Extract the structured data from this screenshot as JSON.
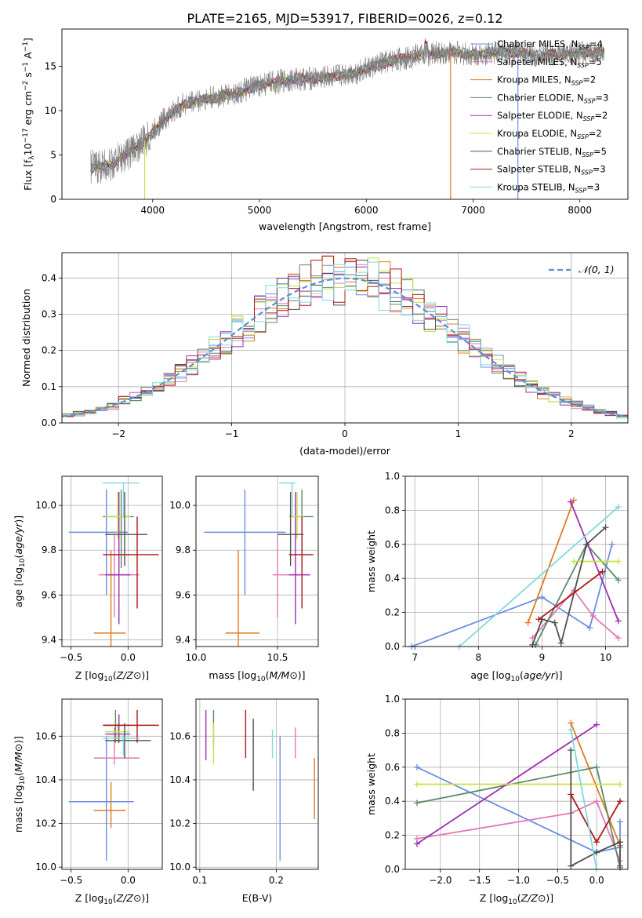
{
  "figure_title": "PLATE=2165, MJD=53917, FIBERID=0026, z=0.12",
  "colors": {
    "Chabrier MILES": "#6b8ee0",
    "Salpeter MILES": "#e07ab5",
    "Kroupa MILES": "#e07a20",
    "Chabrier ELODIE": "#5a8a68",
    "Salpeter ELODIE": "#9b30b0",
    "Kroupa ELODIE": "#c8e040",
    "Chabrier STELIB": "#505050",
    "Salpeter STELIB": "#b01818",
    "Kroupa STELIB": "#80d8e0",
    "gauss": "#5b8fd6"
  },
  "legend_spectrum": [
    {
      "name": "Chabrier MILES, N",
      "sub": "SSP",
      "tail": "=4"
    },
    {
      "name": "Salpeter MILES, N",
      "sub": "SSP",
      "tail": "=5"
    },
    {
      "name": "Kroupa MILES, N",
      "sub": "SSP",
      "tail": "=2"
    },
    {
      "name": "Chabrier ELODIE, N",
      "sub": "SSP",
      "tail": "=3"
    },
    {
      "name": "Salpeter ELODIE, N",
      "sub": "SSP",
      "tail": "=2"
    },
    {
      "name": "Kroupa ELODIE, N",
      "sub": "SSP",
      "tail": "=2"
    },
    {
      "name": "Chabrier STELIB, N",
      "sub": "SSP",
      "tail": "=5"
    },
    {
      "name": "Salpeter STELIB, N",
      "sub": "SSP",
      "tail": "=3"
    },
    {
      "name": "Kroupa STELIB, N",
      "sub": "SSP",
      "tail": "=3"
    }
  ],
  "chart_data": [
    {
      "id": "spectrum",
      "type": "line",
      "xlabel": "wavelength [Angstrom, rest frame]",
      "ylabel": "Flux [f",
      "ylabel_parts": [
        "Flux [f",
        "λ",
        "10",
        "−17",
        " erg cm",
        "−2",
        " s",
        "−1",
        " A",
        "−1",
        "]"
      ],
      "xlim": [
        3150,
        8450
      ],
      "ylim": [
        0,
        19.2
      ],
      "xticks": [
        4000,
        5000,
        6000,
        7000,
        8000
      ],
      "yticks": [
        0,
        5,
        10,
        15
      ],
      "continuum": [
        [
          3400,
          3.6
        ],
        [
          3600,
          3.8
        ],
        [
          3800,
          5.5
        ],
        [
          3950,
          6.8
        ],
        [
          4100,
          9
        ],
        [
          4300,
          10.8
        ],
        [
          4500,
          11.3
        ],
        [
          4800,
          12
        ],
        [
          5000,
          12.9
        ],
        [
          5300,
          13.5
        ],
        [
          5600,
          13.7
        ],
        [
          5900,
          14.3
        ],
        [
          6200,
          15.5
        ],
        [
          6500,
          16.3
        ],
        [
          6800,
          16.6
        ],
        [
          7000,
          16.3
        ],
        [
          7300,
          16.7
        ],
        [
          7600,
          16.3
        ],
        [
          7900,
          16.4
        ],
        [
          8200,
          16.6
        ]
      ]
    },
    {
      "id": "residuals",
      "type": "histogram",
      "xlabel": "(data-model)/error",
      "ylabel": "Normed distribution",
      "xlim": [
        -2.5,
        2.5
      ],
      "ylim": [
        0,
        0.47
      ],
      "xticks": [
        -2,
        -1,
        0,
        1,
        2
      ],
      "yticks": [
        0.0,
        0.1,
        0.2,
        0.3,
        0.4
      ],
      "legend_label": "𝒩(0, 1)",
      "bin_width": 0.1
    },
    {
      "id": "age_vs_Z",
      "type": "errorbar",
      "xlabel": "Z [log10(Z/Z⊙)]",
      "ylabel": "age [log10(age/yr)]",
      "xlim": [
        -0.58,
        0.3
      ],
      "ylim": [
        9.37,
        10.13
      ],
      "xticks": [
        -0.5,
        0.0
      ],
      "yticks": [
        9.4,
        9.6,
        9.8,
        10.0
      ],
      "points": [
        {
          "series": "Chabrier MILES",
          "x": -0.19,
          "xe": [
            -0.52,
            0.0
          ],
          "y": 9.88,
          "ye": [
            9.6,
            10.07
          ]
        },
        {
          "series": "Salpeter MILES",
          "x": -0.12,
          "xe": [
            -0.26,
            0.1
          ],
          "y": 9.69,
          "ye": [
            9.5,
            9.87
          ]
        },
        {
          "series": "Kroupa MILES",
          "x": -0.15,
          "xe": [
            -0.3,
            -0.02
          ],
          "y": 9.43,
          "ye": [
            9.37,
            9.8
          ]
        },
        {
          "series": "Chabrier ELODIE",
          "x": -0.06,
          "xe": [
            -0.22,
            0.05
          ],
          "y": 9.95,
          "ye": [
            9.72,
            10.07
          ]
        },
        {
          "series": "Salpeter ELODIE",
          "x": -0.08,
          "xe": [
            -0.2,
            0.02
          ],
          "y": 9.69,
          "ye": [
            9.47,
            10.06
          ]
        },
        {
          "series": "Kroupa ELODIE",
          "x": -0.09,
          "xe": [
            -0.2,
            0.02
          ],
          "y": 9.95,
          "ye": [
            9.85,
            10.06
          ]
        },
        {
          "series": "Chabrier STELIB",
          "x": -0.03,
          "xe": [
            -0.2,
            0.17
          ],
          "y": 9.87,
          "ye": [
            9.73,
            10.06
          ]
        },
        {
          "series": "Salpeter STELIB",
          "x": 0.08,
          "xe": [
            -0.22,
            0.27
          ],
          "y": 9.78,
          "ye": [
            9.54,
            9.95
          ]
        },
        {
          "series": "Kroupa STELIB",
          "x": -0.04,
          "xe": [
            -0.22,
            0.1
          ],
          "y": 10.1,
          "ye": [
            9.95,
            10.1
          ]
        }
      ]
    },
    {
      "id": "age_vs_mass",
      "type": "errorbar",
      "xlabel": "mass [log10(M/M⊙)]",
      "ylabel": "",
      "xlim": [
        10.0,
        10.75
      ],
      "ylim": [
        9.37,
        10.13
      ],
      "xticks": [
        10.0,
        10.5
      ],
      "yticks": [
        9.4,
        9.6,
        9.8,
        10.0
      ],
      "points": [
        {
          "series": "Chabrier MILES",
          "x": 10.3,
          "xe": [
            10.05,
            10.55
          ],
          "y": 9.88,
          "ye": [
            9.6,
            10.07
          ]
        },
        {
          "series": "Salpeter MILES",
          "x": 10.5,
          "xe": [
            10.47,
            10.64
          ],
          "y": 9.69,
          "ye": [
            9.5,
            9.87
          ]
        },
        {
          "series": "Kroupa MILES",
          "x": 10.26,
          "xe": [
            10.18,
            10.39
          ],
          "y": 9.43,
          "ye": [
            9.37,
            9.8
          ]
        },
        {
          "series": "Chabrier ELODIE",
          "x": 10.65,
          "xe": [
            10.57,
            10.72
          ],
          "y": 9.95,
          "ye": [
            9.72,
            10.07
          ]
        },
        {
          "series": "Salpeter ELODIE",
          "x": 10.61,
          "xe": [
            10.57,
            10.7
          ],
          "y": 9.69,
          "ye": [
            9.47,
            10.06
          ]
        },
        {
          "series": "Kroupa ELODIE",
          "x": 10.62,
          "xe": [
            10.57,
            10.66
          ],
          "y": 9.95,
          "ye": [
            9.85,
            10.06
          ]
        },
        {
          "series": "Chabrier STELIB",
          "x": 10.58,
          "xe": [
            10.5,
            10.66
          ],
          "y": 9.87,
          "ye": [
            9.73,
            10.06
          ]
        },
        {
          "series": "Salpeter STELIB",
          "x": 10.65,
          "xe": [
            10.57,
            10.72
          ],
          "y": 9.78,
          "ye": [
            9.54,
            9.95
          ]
        },
        {
          "series": "Kroupa STELIB",
          "x": 10.59,
          "xe": [
            10.51,
            10.61
          ],
          "y": 10.1,
          "ye": [
            9.95,
            10.1
          ]
        }
      ]
    },
    {
      "id": "weight_vs_age",
      "type": "line",
      "xlabel": "age [log10(age/yr)]",
      "ylabel": "mass weight",
      "xlim": [
        6.85,
        10.35
      ],
      "ylim": [
        0,
        1.0
      ],
      "xticks": [
        7,
        8,
        9,
        10
      ],
      "yticks": [
        0.0,
        0.2,
        0.4,
        0.6,
        0.8,
        1.0
      ],
      "series": [
        {
          "name": "Chabrier MILES",
          "x": [
            6.95,
            9.0,
            9.75,
            10.1
          ],
          "y": [
            0.0,
            0.29,
            0.11,
            0.6
          ]
        },
        {
          "name": "Salpeter MILES",
          "x": [
            8.85,
            9.5,
            9.8,
            10.2
          ],
          "y": [
            0.05,
            0.33,
            0.18,
            0.05
          ]
        },
        {
          "name": "Kroupa MILES",
          "x": [
            8.78,
            9.5
          ],
          "y": [
            0.14,
            0.86
          ]
        },
        {
          "name": "Chabrier ELODIE",
          "x": [
            8.9,
            9.7,
            10.2
          ],
          "y": [
            0.01,
            0.6,
            0.39
          ]
        },
        {
          "name": "Salpeter ELODIE",
          "x": [
            9.45,
            10.2
          ],
          "y": [
            0.85,
            0.15
          ]
        },
        {
          "name": "Kroupa ELODIE",
          "x": [
            9.5,
            10.2
          ],
          "y": [
            0.5,
            0.5
          ]
        },
        {
          "name": "Chabrier STELIB",
          "x": [
            8.85,
            9.0,
            9.2,
            9.3,
            9.7,
            10.0
          ],
          "y": [
            0.01,
            0.16,
            0.14,
            0.02,
            0.6,
            0.7
          ]
        },
        {
          "name": "Salpeter STELIB",
          "x": [
            8.95,
            9.95
          ],
          "y": [
            0.16,
            0.44
          ]
        },
        {
          "name": "Kroupa STELIB",
          "x": [
            7.7,
            10.2
          ],
          "y": [
            0.0,
            0.82
          ]
        }
      ]
    },
    {
      "id": "mass_vs_Z",
      "type": "errorbar",
      "xlabel": "Z [log10(Z/Z⊙)]",
      "ylabel": "mass [log10(M/M⊙)]",
      "xlim": [
        -0.58,
        0.3
      ],
      "ylim": [
        9.99,
        10.77
      ],
      "xticks": [
        -0.5,
        0.0
      ],
      "yticks": [
        10.0,
        10.2,
        10.4,
        10.6
      ],
      "points": [
        {
          "series": "Chabrier MILES",
          "x": -0.19,
          "xe": [
            -0.52,
            0.05
          ],
          "y": 10.3,
          "ye": [
            10.03,
            10.6
          ]
        },
        {
          "series": "Salpeter MILES",
          "x": -0.12,
          "xe": [
            -0.3,
            0.1
          ],
          "y": 10.5,
          "ye": [
            10.47,
            10.64
          ]
        },
        {
          "series": "Kroupa MILES",
          "x": -0.15,
          "xe": [
            -0.3,
            -0.02
          ],
          "y": 10.26,
          "ye": [
            10.18,
            10.39
          ]
        },
        {
          "series": "Chabrier ELODIE",
          "x": -0.11,
          "xe": [
            -0.22,
            0.03
          ],
          "y": 10.65,
          "ye": [
            10.57,
            10.72
          ]
        },
        {
          "series": "Salpeter ELODIE",
          "x": -0.08,
          "xe": [
            -0.2,
            0.02
          ],
          "y": 10.61,
          "ye": [
            10.57,
            10.7
          ]
        },
        {
          "series": "Kroupa ELODIE",
          "x": -0.09,
          "xe": [
            -0.2,
            0.02
          ],
          "y": 10.62,
          "ye": [
            10.57,
            10.66
          ]
        },
        {
          "series": "Chabrier STELIB",
          "x": -0.03,
          "xe": [
            -0.2,
            0.2
          ],
          "y": 10.58,
          "ye": [
            10.5,
            10.66
          ]
        },
        {
          "series": "Salpeter STELIB",
          "x": 0.08,
          "xe": [
            -0.22,
            0.27
          ],
          "y": 10.65,
          "ye": [
            10.57,
            10.72
          ]
        },
        {
          "series": "Kroupa STELIB",
          "x": -0.04,
          "xe": [
            -0.22,
            0.1
          ],
          "y": 10.59,
          "ye": [
            10.51,
            10.61
          ]
        }
      ]
    },
    {
      "id": "mass_vs_ebv",
      "type": "errorbar",
      "xlabel": "E(B-V)",
      "ylabel": "",
      "xlim": [
        0.095,
        0.255
      ],
      "ylim": [
        9.99,
        10.77
      ],
      "xticks": [
        0.1,
        0.2
      ],
      "yticks": [
        10.0,
        10.2,
        10.4,
        10.6
      ],
      "points": [
        {
          "series": "Chabrier MILES",
          "x": 0.205,
          "y": 10.3,
          "ye": [
            10.03,
            10.6
          ]
        },
        {
          "series": "Salpeter MILES",
          "x": 0.225,
          "y": 10.5,
          "ye": [
            10.5,
            10.64
          ]
        },
        {
          "series": "Kroupa MILES",
          "x": 0.25,
          "y": 10.26,
          "ye": [
            10.22,
            10.5
          ]
        },
        {
          "series": "Chabrier ELODIE",
          "x": 0.118,
          "y": 10.65,
          "ye": [
            10.55,
            10.72
          ]
        },
        {
          "series": "Salpeter ELODIE",
          "x": 0.108,
          "y": 10.61,
          "ye": [
            10.49,
            10.72
          ]
        },
        {
          "series": "Kroupa ELODIE",
          "x": 0.118,
          "y": 10.62,
          "ye": [
            10.47,
            10.66
          ]
        },
        {
          "series": "Chabrier STELIB",
          "x": 0.17,
          "y": 10.58,
          "ye": [
            10.35,
            10.68
          ]
        },
        {
          "series": "Salpeter STELIB",
          "x": 0.16,
          "y": 10.65,
          "ye": [
            10.5,
            10.72
          ]
        },
        {
          "series": "Kroupa STELIB",
          "x": 0.195,
          "y": 10.59,
          "ye": [
            10.5,
            10.63
          ]
        }
      ]
    },
    {
      "id": "weight_vs_Z",
      "type": "line",
      "xlabel": "Z [log10(Z/Z⊙)]",
      "ylabel": "mass weight",
      "xlim": [
        -2.45,
        0.4
      ],
      "ylim": [
        0,
        1.0
      ],
      "xticks": [
        -2.0,
        -1.5,
        -1.0,
        -0.5,
        0.0
      ],
      "yticks": [
        0.0,
        0.2,
        0.4,
        0.6,
        0.8,
        1.0
      ],
      "series": [
        {
          "name": "Chabrier MILES",
          "x": [
            -2.3,
            0.0,
            0.3,
            0.3
          ],
          "y": [
            0.6,
            0.1,
            0.13,
            0.28
          ]
        },
        {
          "name": "Salpeter MILES",
          "x": [
            -2.3,
            -0.33,
            0.0,
            0.3,
            0.3
          ],
          "y": [
            0.18,
            0.33,
            0.4,
            0.05,
            0.16
          ]
        },
        {
          "name": "Kroupa MILES",
          "x": [
            -0.33,
            0.3
          ],
          "y": [
            0.86,
            0.14
          ]
        },
        {
          "name": "Chabrier ELODIE",
          "x": [
            -2.3,
            0.0,
            0.3
          ],
          "y": [
            0.39,
            0.6,
            0.01
          ]
        },
        {
          "name": "Salpeter ELODIE",
          "x": [
            -2.3,
            0.0
          ],
          "y": [
            0.15,
            0.85
          ]
        },
        {
          "name": "Kroupa ELODIE",
          "x": [
            -2.3,
            0.3
          ],
          "y": [
            0.5,
            0.5
          ]
        },
        {
          "name": "Chabrier STELIB",
          "x": [
            -0.33,
            -0.33,
            0.0,
            0.3,
            0.3
          ],
          "y": [
            0.7,
            0.02,
            0.1,
            0.16,
            0.02
          ]
        },
        {
          "name": "Salpeter STELIB",
          "x": [
            -0.33,
            0.0,
            0.3
          ],
          "y": [
            0.44,
            0.16,
            0.4
          ]
        },
        {
          "name": "Kroupa STELIB",
          "x": [
            -0.33,
            0.0
          ],
          "y": [
            0.82,
            0.0
          ]
        }
      ]
    }
  ]
}
